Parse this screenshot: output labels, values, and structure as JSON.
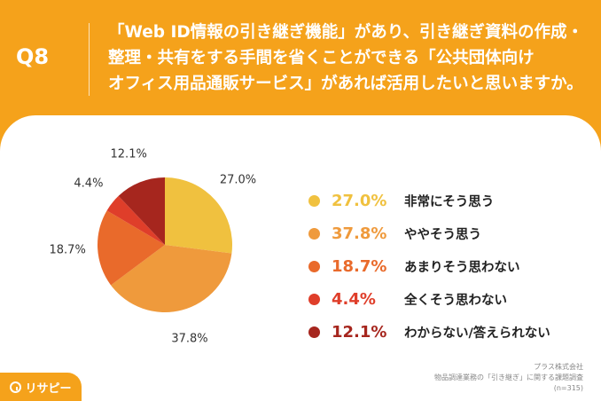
{
  "header": {
    "qnum": "Q8",
    "question_lines": [
      "「Web ID情報の引き継ぎ機能」があり、引き継ぎ資料の作成・",
      "整理・共有をする手間を省くことができる「公共団体向け",
      "オフィス用品通販サービス」があれば活用したいと思いますか。"
    ]
  },
  "chart_data": {
    "type": "pie",
    "categories": [
      "非常にそう思う",
      "ややそう思う",
      "あまりそう思わない",
      "全くそう思わない",
      "わからない/答えられない"
    ],
    "values": [
      27.0,
      37.8,
      18.7,
      4.4,
      12.1
    ],
    "labels": [
      "27.0%",
      "37.8%",
      "18.7%",
      "4.4%",
      "12.1%"
    ],
    "colors": [
      "#f0c13f",
      "#ef9a3c",
      "#e96a2b",
      "#df3e2a",
      "#a6261e"
    ],
    "legend_placement": "right"
  },
  "credit": {
    "company": "プラス株式会社",
    "survey": "物品調達業務の「引き継ぎ」に関する課題調査",
    "n": "(n=315)"
  },
  "logo": {
    "text": "リサピー",
    "icon": "magnifier-icon"
  }
}
